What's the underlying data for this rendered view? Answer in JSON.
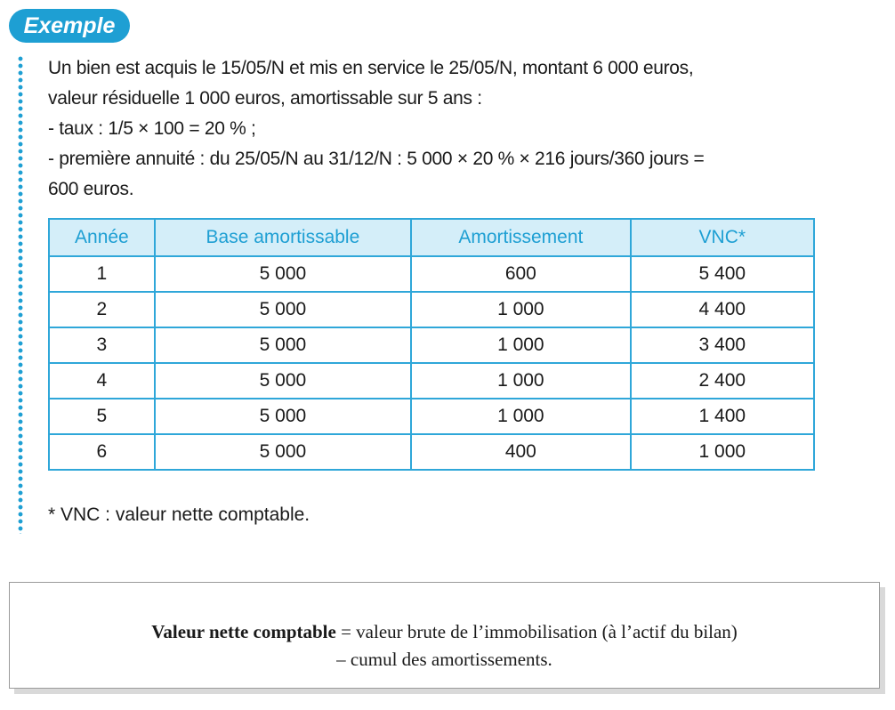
{
  "badge": {
    "label": "Exemple"
  },
  "colors": {
    "accent": "#1e9fd3",
    "header_bg": "#d4eef9"
  },
  "paragraph": {
    "lines": [
      "Un bien est acquis le 15/05/N et mis en service le 25/05/N, montant 6 000 euros,",
      "valeur résiduelle 1 000 euros, amortissable sur 5 ans :",
      "- taux : 1/5 × 100 = 20 % ;",
      "- première annuité : du 25/05/N au 31/12/N : 5 000 × 20 % × 216 jours/360 jours =",
      "600 euros."
    ]
  },
  "table": {
    "headers": [
      "Année",
      "Base amortissable",
      "Amortissement",
      "VNC*"
    ],
    "rows": [
      [
        "1",
        "5 000",
        "600",
        "5 400"
      ],
      [
        "2",
        "5 000",
        "1 000",
        "4 400"
      ],
      [
        "3",
        "5 000",
        "1 000",
        "3 400"
      ],
      [
        "4",
        "5 000",
        "1 000",
        "2 400"
      ],
      [
        "5",
        "5 000",
        "1 000",
        "1 400"
      ],
      [
        "6",
        "5 000",
        "400",
        "1 000"
      ]
    ]
  },
  "footnote": "* VNC : valeur nette comptable.",
  "definition": {
    "term": "Valeur nette comptable",
    "line1_rest": " = valeur brute de l’immobilisation (à l’actif du bilan)",
    "line2": "– cumul des amortissements."
  }
}
